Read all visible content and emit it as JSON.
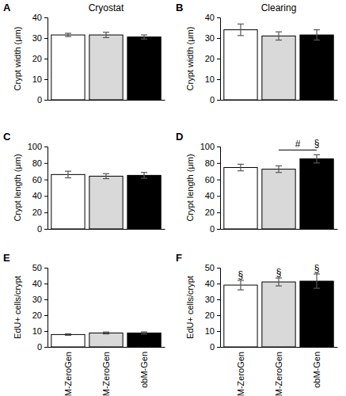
{
  "chart_data": [
    {
      "type": "bar",
      "panel": "A",
      "title": "Cryostat",
      "y_label": "Crypt width (μm)",
      "categories": [
        null,
        null,
        null
      ],
      "values": [
        31.5,
        31.5,
        30.5
      ],
      "errors": [
        0.8,
        1.3,
        1.0
      ],
      "colors": [
        "#ffffff",
        "#d9d9d9",
        "#000000"
      ],
      "ylim": [
        0,
        40
      ],
      "yticks": [
        0,
        10,
        20,
        30,
        40
      ],
      "tick_labels": "y"
    },
    {
      "type": "bar",
      "panel": "B",
      "title": "Clearing",
      "y_label": "Crypt width (μm)",
      "categories": [
        null,
        null,
        null
      ],
      "values": [
        34,
        31,
        31.5
      ],
      "errors": [
        2.8,
        2,
        2.5
      ],
      "colors": [
        "#ffffff",
        "#d9d9d9",
        "#000000"
      ],
      "ylim": [
        0,
        40
      ],
      "yticks": [
        0,
        10,
        20,
        30,
        40
      ],
      "tick_labels": "y"
    },
    {
      "type": "bar",
      "panel": "C",
      "y_label": "Crypt length (μm)",
      "categories": [
        null,
        null,
        null
      ],
      "values": [
        66,
        64,
        65
      ],
      "errors": [
        4,
        3,
        3.5
      ],
      "colors": [
        "#ffffff",
        "#d9d9d9",
        "#000000"
      ],
      "ylim": [
        0,
        100
      ],
      "yticks": [
        0,
        20,
        40,
        60,
        80,
        100
      ],
      "tick_labels": "y"
    },
    {
      "type": "bar",
      "panel": "D",
      "y_label": "Crypt length (μm)",
      "categories": [
        null,
        null,
        null
      ],
      "values": [
        74.5,
        72.5,
        85
      ],
      "errors": [
        4,
        4,
        5
      ],
      "colors": [
        "#ffffff",
        "#d9d9d9",
        "#000000"
      ],
      "ylim": [
        0,
        100
      ],
      "yticks": [
        0,
        20,
        40,
        60,
        80,
        100
      ],
      "tick_labels": "y",
      "annotations": [
        {
          "text": "#",
          "from": 1,
          "to": 2
        },
        {
          "text": "§",
          "from": 2,
          "to": 2
        }
      ]
    },
    {
      "type": "bar",
      "panel": "E",
      "y_label": "EdU+ cells/crypt",
      "categories": [
        "LnM-ZeroGen",
        "obM-ZeroGen",
        "obM-Gen"
      ],
      "values": [
        7.8,
        8.8,
        8.8
      ],
      "errors": [
        0.5,
        0.6,
        0.7
      ],
      "colors": [
        "#ffffff",
        "#d9d9d9",
        "#000000"
      ],
      "ylim": [
        0,
        50
      ],
      "yticks": [
        0,
        10,
        20,
        30,
        40,
        50
      ]
    },
    {
      "type": "bar",
      "panel": "F",
      "y_label": "EdU+ cells/crypt",
      "categories": [
        "LnM-ZeroGen",
        "obM-ZeroGen",
        "obM-Gen"
      ],
      "values": [
        39,
        41,
        41.5
      ],
      "errors": [
        3,
        2.5,
        4.5
      ],
      "colors": [
        "#ffffff",
        "#d9d9d9",
        "#000000"
      ],
      "ylim": [
        0,
        50
      ],
      "yticks": [
        0,
        10,
        20,
        30,
        40,
        50
      ],
      "annotations": [
        {
          "text": "§",
          "from": 0,
          "to": 0
        },
        {
          "text": "§",
          "from": 1,
          "to": 1
        },
        {
          "text": "§",
          "from": 2,
          "to": 2
        }
      ]
    }
  ]
}
